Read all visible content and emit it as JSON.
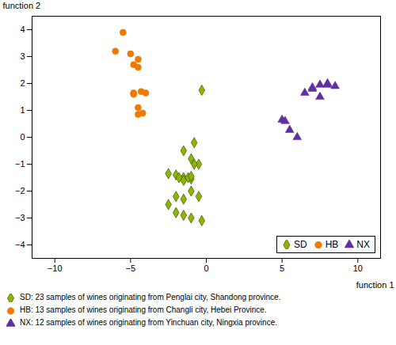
{
  "chart_data": {
    "type": "scatter",
    "xlabel": "function 1",
    "ylabel": "function 2",
    "xlim": [
      -11.5,
      11.5
    ],
    "ylim": [
      -4.5,
      4.5
    ],
    "xticks": [
      -10,
      -5,
      0,
      5,
      10
    ],
    "yticks": [
      -4,
      -3,
      -2,
      -1,
      0,
      1,
      2,
      3,
      4
    ],
    "legend": "lower right",
    "series": [
      {
        "name": "SD",
        "color": "#8db600",
        "edge_color": "#2a4000",
        "marker": "diamond",
        "caption": "SD: 23 samples of wines originating from Penglai city, Shandong province.",
        "x": [
          -0.3,
          -0.8,
          -1.5,
          -1.0,
          -0.5,
          -2.5,
          -2.0,
          -1.5,
          -1.0,
          -1.8,
          -1.5,
          -1.2,
          -1.0,
          -0.8,
          -2.5,
          -2.0,
          -1.5,
          -1.0,
          -0.5,
          -2.0,
          -1.5,
          -1.0,
          -0.3
        ],
        "y": [
          1.75,
          -0.2,
          -0.5,
          -0.8,
          -1.0,
          -1.35,
          -1.4,
          -1.5,
          -1.55,
          -1.5,
          -1.6,
          -1.5,
          -1.45,
          -1.0,
          -2.5,
          -2.2,
          -2.3,
          -2.0,
          -2.2,
          -2.8,
          -2.9,
          -3.0,
          -3.1
        ]
      },
      {
        "name": "HB",
        "color": "#f07800",
        "marker": "circle",
        "caption": "HB: 13 samples of wines originating from Changli city, Hebei Province.",
        "x": [
          -5.5,
          -6.0,
          -5.0,
          -4.5,
          -4.8,
          -4.5,
          -4.3,
          -4.0,
          -4.8,
          -4.5,
          -4.2,
          -4.5,
          -4.8
        ],
        "y": [
          3.9,
          3.2,
          3.1,
          2.9,
          2.7,
          2.6,
          1.7,
          1.65,
          1.6,
          1.1,
          0.9,
          0.85,
          1.65
        ]
      },
      {
        "name": "NX",
        "color": "#6030a0",
        "marker": "triangle",
        "caption": "NX: 12 samples of wines originating from Yinchuan city, Ningxia province.",
        "x": [
          5.0,
          5.2,
          5.5,
          6.0,
          6.5,
          7.0,
          7.5,
          8.0,
          8.5,
          7.0,
          7.5,
          8.0
        ],
        "y": [
          0.65,
          0.6,
          0.27,
          0.0,
          1.65,
          1.8,
          1.5,
          1.95,
          1.9,
          1.85,
          1.95,
          2.0
        ]
      }
    ]
  }
}
